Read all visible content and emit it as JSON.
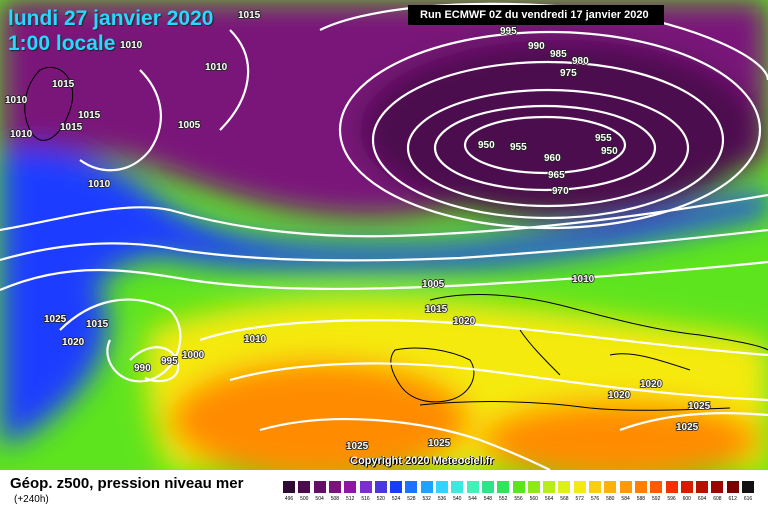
{
  "header": {
    "date_line_1": "lundi 27 janvier 2020",
    "date_line_2": "1:00 locale",
    "run_info": "Run ECMWF 0Z du vendredi 17 janvier 2020"
  },
  "footer": {
    "title": "Géop. z500, pression niveau mer",
    "subtitle": "(+240h)",
    "copyright": "Copyright 2020 Meteociel.fr"
  },
  "colors": {
    "low_center": "#4b0a4e",
    "trough": "#7a137a",
    "jet_blue": "#1a3cff",
    "mid_green": "#5ee41e",
    "high_yellow": "#f5ea10",
    "ridge_orange": "#ff8c00",
    "isobar": "#ffffff",
    "land_outline": "#000000"
  },
  "colorbar": {
    "levels": [
      "496",
      "500",
      "504",
      "508",
      "512",
      "516",
      "520",
      "524",
      "528",
      "532",
      "536",
      "540",
      "544",
      "548",
      "552",
      "556",
      "560",
      "564",
      "568",
      "572",
      "576",
      "580",
      "584",
      "588",
      "592",
      "596",
      "600",
      "604",
      "608",
      "612",
      "616"
    ],
    "colors": [
      "#2e0a33",
      "#4b0a4e",
      "#640f67",
      "#7a137a",
      "#8e17a0",
      "#7b2fcf",
      "#4a37e0",
      "#1a3cff",
      "#1f72ff",
      "#22a2ff",
      "#33d3ff",
      "#3ee8e0",
      "#42f0b8",
      "#2fe38a",
      "#33e45a",
      "#5ee41e",
      "#8ee81a",
      "#b8ee14",
      "#ddf212",
      "#f5ea10",
      "#f7d00c",
      "#f9b30a",
      "#ff9a06",
      "#ff7e03",
      "#ff5a00",
      "#f13200",
      "#d81b00",
      "#b90f00",
      "#9a0600",
      "#7a0000",
      "#111111"
    ]
  },
  "isobars": {
    "labels": [
      "1015",
      "1010",
      "1015",
      "1010",
      "1015",
      "1015",
      "1010",
      "1005",
      "1010",
      "1010",
      "995",
      "990",
      "985",
      "980",
      "975",
      "950",
      "955",
      "960",
      "955",
      "950",
      "965",
      "970",
      "1010",
      "1005",
      "1015",
      "1020",
      "1025",
      "1015",
      "1020",
      "990",
      "995",
      "1000",
      "1010",
      "1025",
      "1025",
      "1020",
      "1020",
      "1025",
      "1025"
    ]
  }
}
